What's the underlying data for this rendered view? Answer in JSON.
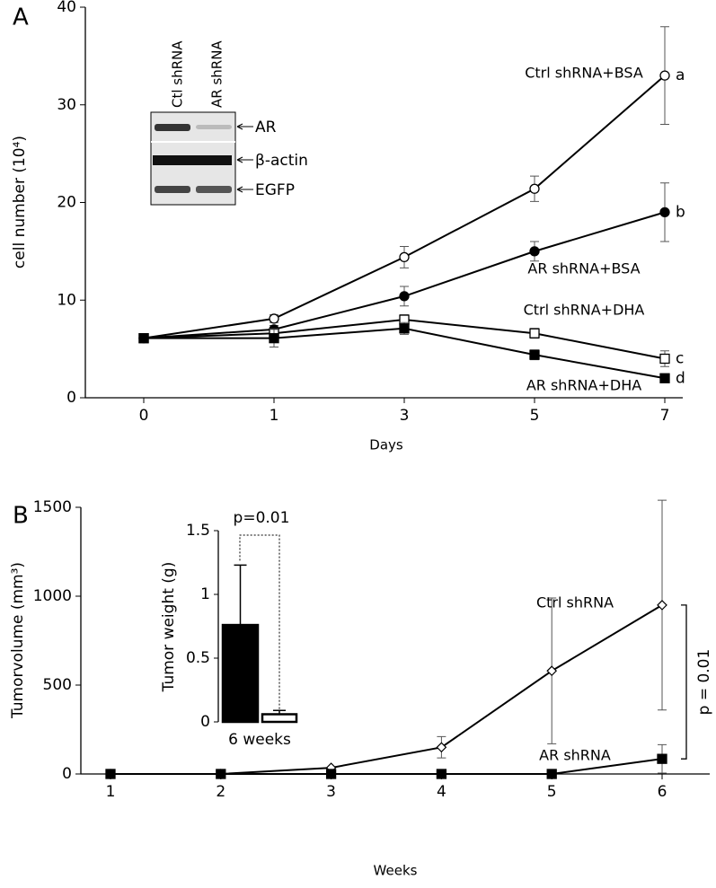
{
  "chart_data": [
    {
      "type": "line",
      "panel": "A",
      "xlabel": "Days",
      "ylabel": "cell number (10⁴)",
      "categories": [
        "0",
        "1",
        "3",
        "5",
        "7"
      ],
      "ylim": [
        0,
        40
      ],
      "yticks": [
        0,
        10,
        20,
        30,
        40
      ],
      "series": [
        {
          "name": "Ctrl shRNA+BSA",
          "tag": "a",
          "marker": "circle-open",
          "color": "#000",
          "values": [
            6.1,
            8.1,
            14.4,
            21.4,
            33
          ],
          "errors": [
            0.2,
            0.4,
            1.1,
            1.3,
            5
          ]
        },
        {
          "name": "AR shRNA+BSA",
          "tag": "b",
          "marker": "circle-filled",
          "color": "#000",
          "values": [
            6.1,
            7.0,
            10.4,
            15.0,
            19
          ],
          "errors": [
            0.2,
            0.4,
            1.0,
            1.0,
            3
          ]
        },
        {
          "name": "Ctrl shRNA+DHA",
          "tag": "c",
          "marker": "square-open",
          "color": "#000",
          "values": [
            6.1,
            6.6,
            8.0,
            6.6,
            4.0
          ],
          "errors": [
            0.2,
            0.5,
            0.5,
            0.5,
            0.8
          ]
        },
        {
          "name": "AR shRNA+DHA",
          "tag": "d",
          "marker": "square-filled",
          "color": "#000",
          "values": [
            6.1,
            6.1,
            7.1,
            4.4,
            2.0
          ],
          "errors": [
            0.2,
            0.9,
            0.6,
            0.5,
            0.3
          ]
        }
      ]
    },
    {
      "type": "line",
      "panel": "B",
      "xlabel": "Weeks",
      "ylabel": "Tumorvolume (mm³)",
      "categories": [
        "1",
        "2",
        "3",
        "4",
        "5",
        "6"
      ],
      "ylim": [
        0,
        1500
      ],
      "yticks": [
        0,
        500,
        1000,
        1500
      ],
      "annotation": "p = 0.01",
      "series": [
        {
          "name": "Ctrl shRNA",
          "marker": "diamond-open",
          "color": "#000",
          "values": [
            0,
            0,
            35,
            150,
            580,
            950
          ],
          "errors": [
            0,
            0,
            0,
            60,
            410,
            590
          ]
        },
        {
          "name": "AR shRNA",
          "marker": "square-filled",
          "color": "#000",
          "values": [
            0,
            0,
            0,
            0,
            0,
            85
          ],
          "errors": [
            0,
            0,
            0,
            0,
            0,
            80
          ]
        }
      ]
    },
    {
      "type": "bar",
      "ylabel": "Tumor weight (g)",
      "xlabel": "6 weeks",
      "annotation": "p=0.01",
      "ylim": [
        0,
        1.5
      ],
      "yticks": [
        0,
        0.5,
        1,
        1.5
      ],
      "values": [
        0.76,
        0.06
      ],
      "errors": [
        0.47,
        0.03
      ],
      "colors": [
        "#000",
        "#fff"
      ]
    }
  ],
  "blot": {
    "lanes": [
      "Ctl shRNA",
      "AR shRNA"
    ],
    "bands": [
      "AR",
      "β-actin",
      "EGFP"
    ]
  }
}
